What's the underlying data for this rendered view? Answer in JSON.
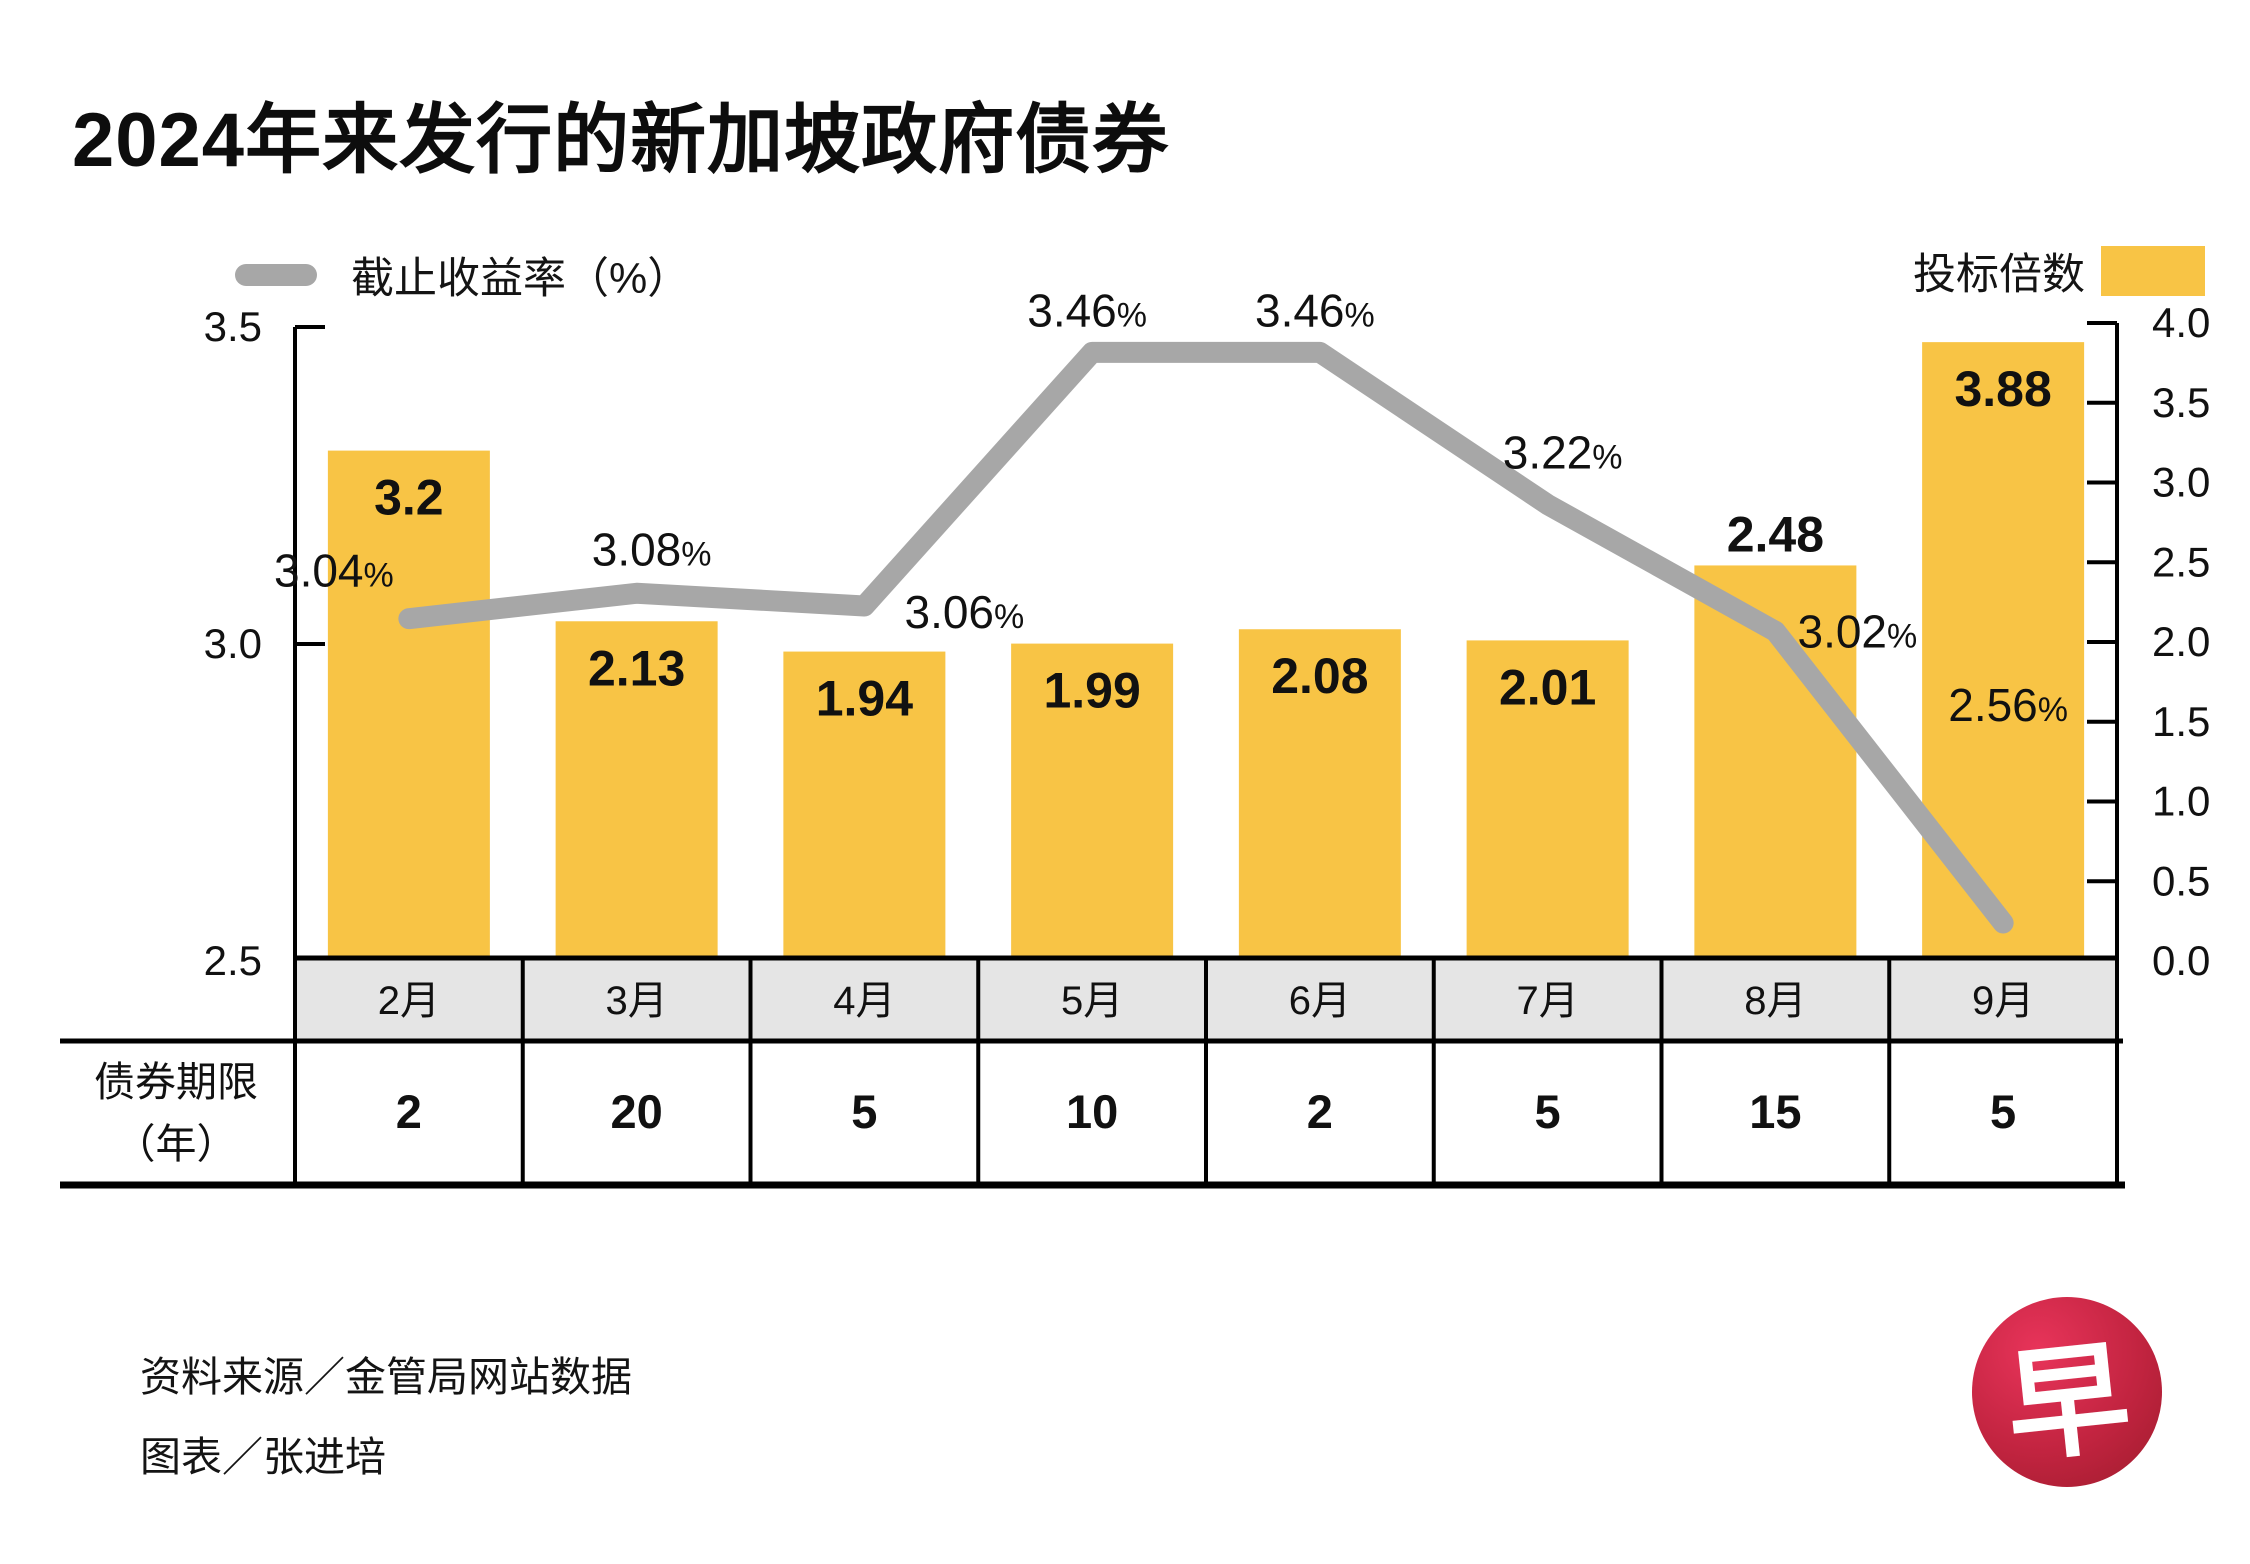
{
  "title": "2024年来发行的新加坡政府债券",
  "legend": {
    "line_label": "截止收益率（%）",
    "bar_label": "投标倍数"
  },
  "colors": {
    "bar": "#F8C445",
    "line": "#A7A7A7",
    "band_bg": "#E5E5E5",
    "axis": "#000000",
    "text": "#111111",
    "logo_red_light": "#E8345A",
    "logo_red_dark": "#9E1B2C"
  },
  "chart_data": {
    "type": "bar",
    "subtype": "bar+line dual axis",
    "categories": [
      "2月",
      "3月",
      "4月",
      "5月",
      "6月",
      "7月",
      "8月",
      "9月"
    ],
    "series": [
      {
        "name": "投标倍数",
        "type": "bar",
        "axis": "right",
        "values": [
          3.2,
          2.13,
          1.94,
          1.99,
          2.08,
          2.01,
          2.48,
          3.88
        ],
        "labels": [
          "3.2",
          "2.13",
          "1.94",
          "1.99",
          "2.08",
          "2.01",
          "2.48",
          "3.88"
        ]
      },
      {
        "name": "截止收益率（%）",
        "type": "line",
        "axis": "left",
        "values": [
          3.04,
          3.08,
          3.06,
          3.46,
          3.46,
          3.22,
          3.02,
          2.56
        ],
        "labels": [
          "3.04%",
          "3.08%",
          "3.06%",
          "3.46%",
          "3.46%",
          "3.22%",
          "3.02%",
          "2.56%"
        ]
      }
    ],
    "left_axis": {
      "min": 2.5,
      "max": 3.5,
      "tick_labels": [
        "3.5",
        "3.0",
        "2.5"
      ],
      "tick_values": [
        3.5,
        3.0,
        2.5
      ]
    },
    "right_axis": {
      "min": 0.0,
      "max": 4.0,
      "tick_labels": [
        "4.0",
        "3.5",
        "3.0",
        "2.5",
        "2.0",
        "1.5",
        "1.0",
        "0.5",
        "0.0"
      ],
      "tick_values": [
        4.0,
        3.5,
        3.0,
        2.5,
        2.0,
        1.5,
        1.0,
        0.5,
        0.0
      ]
    },
    "grid": false,
    "legend_position": "top"
  },
  "bond_table": {
    "header_line1": "债券期限",
    "header_line2": "（年）",
    "values": [
      "2",
      "20",
      "5",
      "10",
      "2",
      "5",
      "15",
      "5"
    ]
  },
  "footer": {
    "source": "资料来源／金管局网站数据",
    "credit": "图表／张进培"
  },
  "logo": {
    "char": "早"
  }
}
